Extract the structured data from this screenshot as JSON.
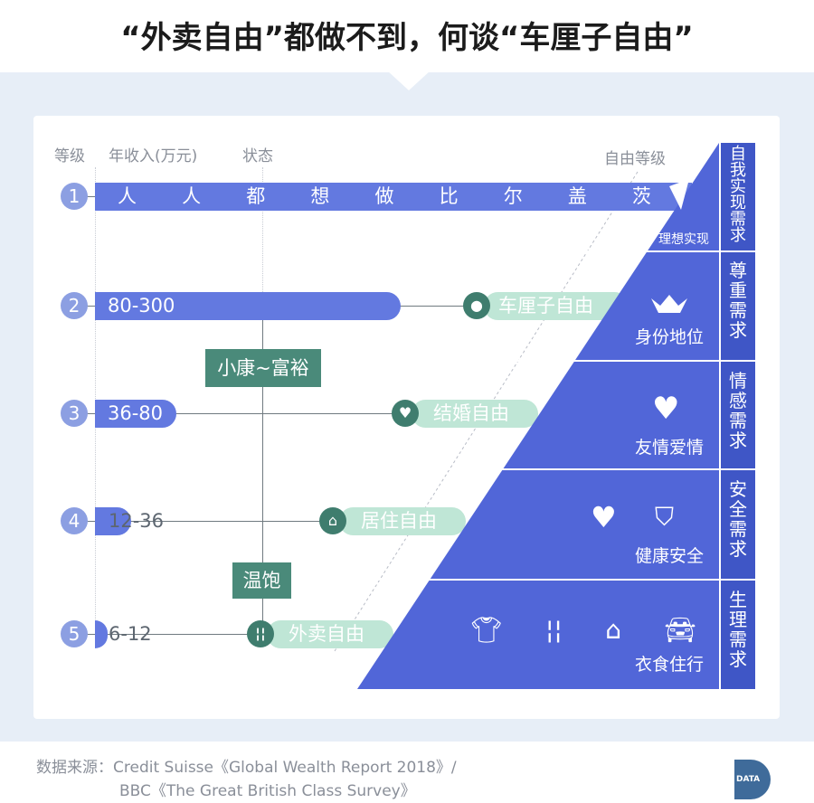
{
  "title": "“外卖自由”都做不到，何谈“车厘子自由”",
  "headers": {
    "level": "等级",
    "income": "年收入(万元)",
    "status": "状态",
    "freedom_level": "自由等级"
  },
  "rows": [
    {
      "level": "1",
      "text": [
        "人",
        "人",
        "都",
        "想",
        "做",
        "比",
        "尔",
        "盖",
        "茨"
      ]
    },
    {
      "level": "2",
      "income": "80-300",
      "freedom": "车厘子自由",
      "icon": "apple-icon"
    },
    {
      "level": "3",
      "income": "36-80",
      "freedom": "结婚自由",
      "icon": "heart-icon"
    },
    {
      "level": "4",
      "income": "12-36",
      "freedom": "居住自由",
      "icon": "house-icon"
    },
    {
      "level": "5",
      "income": "6-12",
      "freedom": "外卖自由",
      "icon": "fork-knife-icon"
    }
  ],
  "status_boxes": [
    "小康~富裕",
    "温饱"
  ],
  "pyramid": [
    {
      "need": "自我实现需求",
      "label": "理想实现",
      "icon": "paper-plane-icon"
    },
    {
      "need": "尊重需求",
      "label": "身份地位",
      "icon": "crown-icon"
    },
    {
      "need": "情感需求",
      "label": "友情爱情",
      "icon": "heart-icon"
    },
    {
      "need": "安全需求",
      "label": "健康安全",
      "icon": "health-shield-icon"
    },
    {
      "need": "生理需求",
      "label": "衣食住行",
      "icon": "clothes-food-house-car-icon"
    }
  ],
  "source": {
    "label": "数据来源：",
    "line1": "Credit Suisse《Global Wealth Report 2018》/",
    "line2": "BBC《The Great British Class Survey》"
  },
  "logo": "DATA",
  "colors": {
    "bar": "#6379e0",
    "pyramid": "#5166d8",
    "need_column": "#3f56c6",
    "status_green": "#4a8a7a",
    "pill": "#bfe6d6",
    "background": "#e7eef7"
  }
}
